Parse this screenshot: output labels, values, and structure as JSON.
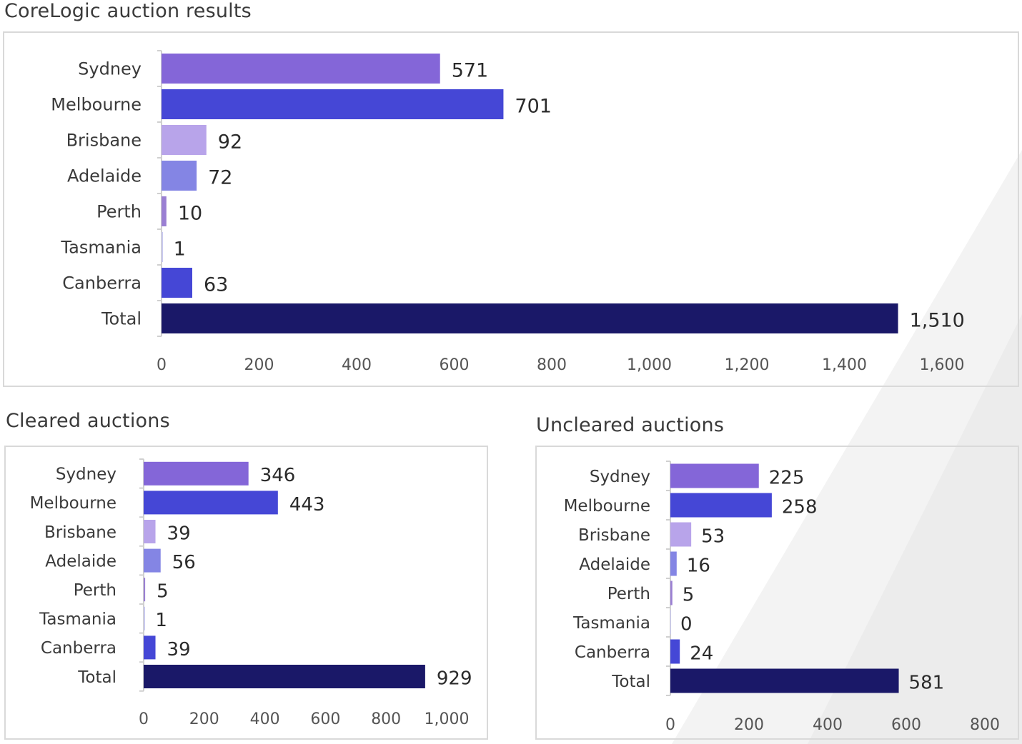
{
  "colors": {
    "sydney": "#8466d8",
    "melbourne": "#4547d6",
    "brisbane": "#b8a4ea",
    "adelaide": "#8485e4",
    "perth": "#9a7fd3",
    "tasmania": "#c9c9ef",
    "canberra": "#4547d6",
    "total": "#1a1868",
    "axis": "#d0d0d0",
    "border": "#d9d9d9",
    "text": "#3a3a3a"
  },
  "chart_data": [
    {
      "id": "main",
      "type": "bar",
      "orientation": "horizontal",
      "title": "CoreLogic auction results",
      "categories": [
        "Sydney",
        "Melbourne",
        "Brisbane",
        "Adelaide",
        "Perth",
        "Tasmania",
        "Canberra",
        "Total"
      ],
      "values": [
        571,
        701,
        92,
        72,
        10,
        1,
        63,
        1510
      ],
      "value_labels": [
        "571",
        "701",
        "92",
        "72",
        "10",
        "1",
        "63",
        "1,510"
      ],
      "xlim": [
        0,
        1600
      ],
      "ticks": [
        0,
        200,
        400,
        600,
        800,
        1000,
        1200,
        1400,
        1600
      ],
      "tick_labels": [
        "0",
        "200",
        "400",
        "600",
        "800",
        "1,000",
        "1,200",
        "1,400",
        "1,600"
      ],
      "grid": false,
      "legend": "none"
    },
    {
      "id": "cleared",
      "type": "bar",
      "orientation": "horizontal",
      "title": "Cleared auctions",
      "categories": [
        "Sydney",
        "Melbourne",
        "Brisbane",
        "Adelaide",
        "Perth",
        "Tasmania",
        "Canberra",
        "Total"
      ],
      "values": [
        346,
        443,
        39,
        56,
        5,
        1,
        39,
        929
      ],
      "value_labels": [
        "346",
        "443",
        "39",
        "56",
        "5",
        "1",
        "39",
        "929"
      ],
      "xlim": [
        0,
        1000
      ],
      "ticks": [
        0,
        200,
        400,
        600,
        800,
        1000
      ],
      "tick_labels": [
        "0",
        "200",
        "400",
        "600",
        "800",
        "1,000"
      ],
      "grid": false,
      "legend": "none"
    },
    {
      "id": "uncleared",
      "type": "bar",
      "orientation": "horizontal",
      "title": "Uncleared auctions",
      "categories": [
        "Sydney",
        "Melbourne",
        "Brisbane",
        "Adelaide",
        "Perth",
        "Tasmania",
        "Canberra",
        "Total"
      ],
      "values": [
        225,
        258,
        53,
        16,
        5,
        0,
        24,
        581
      ],
      "value_labels": [
        "225",
        "258",
        "53",
        "16",
        "5",
        "0",
        "24",
        "581"
      ],
      "xlim": [
        0,
        800
      ],
      "ticks": [
        0,
        200,
        400,
        600,
        800
      ],
      "tick_labels": [
        "0",
        "200",
        "400",
        "600",
        "800"
      ],
      "grid": false,
      "legend": "none"
    }
  ]
}
